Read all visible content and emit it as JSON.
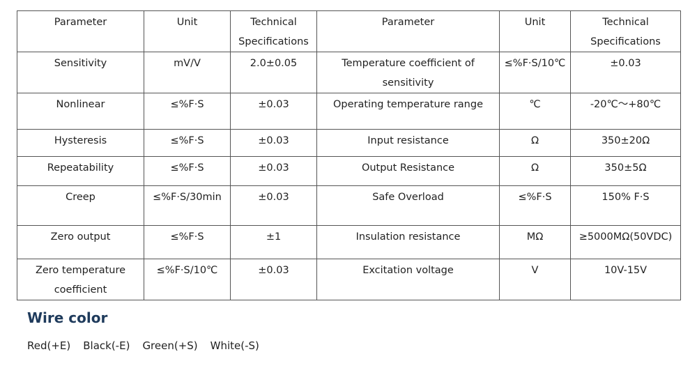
{
  "table": {
    "header": [
      "Parameter",
      "Unit",
      "Technical Specifications",
      "Parameter",
      "Unit",
      "Technical Specifications"
    ],
    "rows": [
      [
        "Sensitivity",
        "mV/V",
        "2.0±0.05",
        "Temperature coefficient of sensitivity",
        "≤%F·S/10℃",
        "±0.03"
      ],
      [
        "Nonlinear",
        "≤%F·S",
        "±0.03",
        "Operating temperature range",
        "℃",
        "-20℃～+80℃"
      ],
      [
        "Hysteresis",
        "≤%F·S",
        "±0.03",
        "Input resistance",
        "Ω",
        "350±20Ω"
      ],
      [
        "Repeatability",
        "≤%F·S",
        "±0.03",
        "Output Resistance",
        "Ω",
        "350±5Ω"
      ],
      [
        "Creep",
        "≤%F·S/30min",
        "±0.03",
        "Safe Overload",
        "≤%F·S",
        "150% F·S"
      ],
      [
        "Zero output",
        "≤%F·S",
        "±1",
        "Insulation resistance",
        "MΩ",
        "≥5000MΩ(50VDC)"
      ],
      [
        "Zero temperature coefficient",
        "≤%F·S/10℃",
        "±0.03",
        "Excitation voltage",
        "V",
        "10V-15V"
      ]
    ]
  },
  "wire_color": {
    "title": "Wire color",
    "items": [
      "Red(+E)",
      "Black(-E)",
      "Green(+S)",
      "White(-S)"
    ]
  }
}
